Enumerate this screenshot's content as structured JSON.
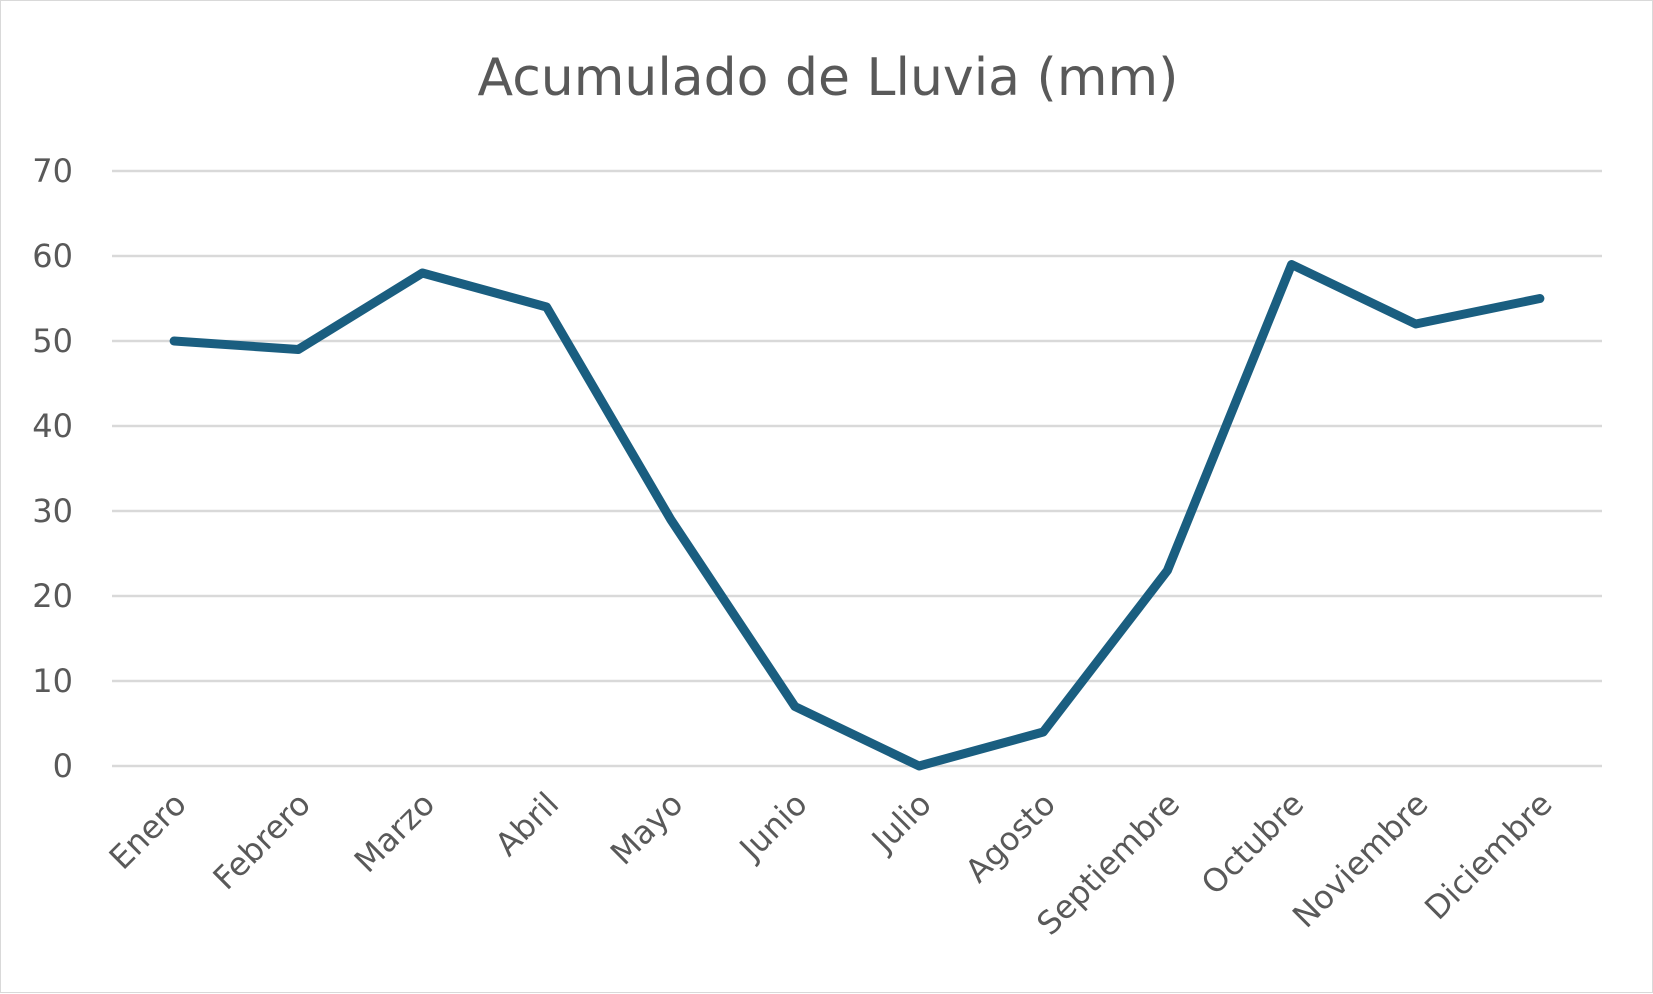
{
  "chart_data": {
    "type": "line",
    "title": "Acumulado de Lluvia (mm)",
    "xlabel": "",
    "ylabel": "",
    "categories": [
      "Enero",
      "Febrero",
      "Marzo",
      "Abril",
      "Mayo",
      "Junio",
      "Julio",
      "Agosto",
      "Septiembre",
      "Octubre",
      "Noviembre",
      "Diciembre"
    ],
    "series": [
      {
        "values": [
          50,
          49,
          58,
          54,
          29,
          7,
          0,
          4,
          23,
          59,
          52,
          55
        ],
        "color": "#1a5e80"
      }
    ],
    "ylim": [
      0,
      70
    ],
    "yticks": [
      0,
      10,
      20,
      30,
      40,
      50,
      60,
      70
    ],
    "grid": true,
    "legend": "none"
  }
}
